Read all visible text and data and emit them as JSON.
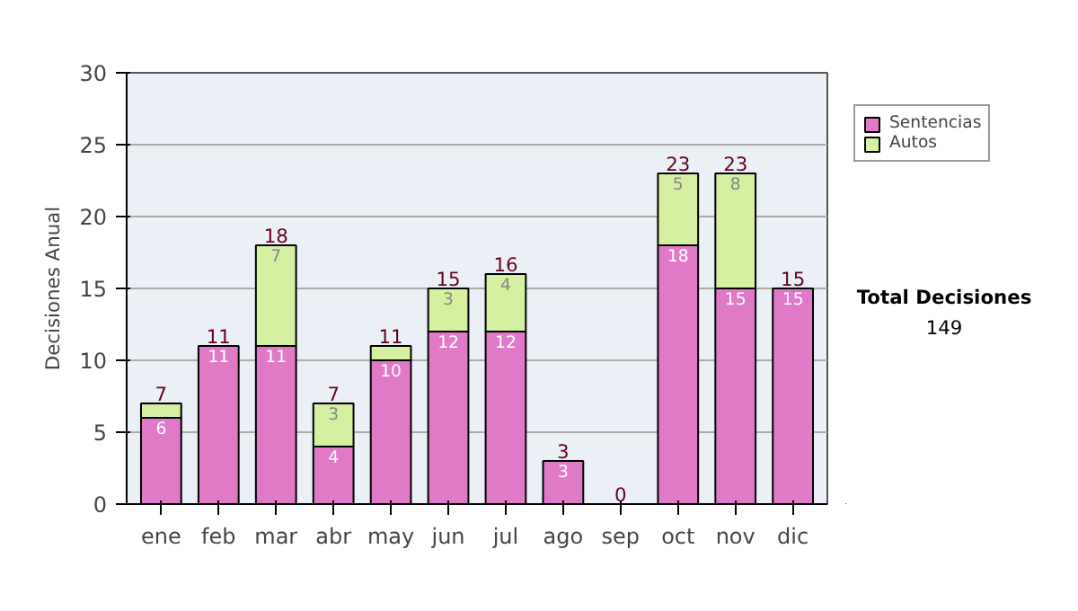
{
  "chart_data": {
    "type": "bar",
    "stacked": true,
    "ylabel": "Decisiones Anual",
    "categories": [
      "ene",
      "feb",
      "mar",
      "abr",
      "may",
      "jun",
      "jul",
      "ago",
      "sep",
      "oct",
      "nov",
      "dic"
    ],
    "series": [
      {
        "name": "Sentencias",
        "color": "#e07ac8",
        "values": [
          6,
          11,
          11,
          4,
          10,
          12,
          12,
          3,
          0,
          18,
          15,
          15
        ],
        "value_labels": [
          "6",
          "11",
          "11",
          "4",
          "10",
          "12",
          "12",
          "3",
          null,
          "18",
          "15",
          "15"
        ]
      },
      {
        "name": "Autos",
        "color": "#d4f0a0",
        "values": [
          1,
          0,
          7,
          3,
          1,
          3,
          4,
          0,
          0,
          5,
          8,
          0
        ],
        "value_labels": [
          null,
          null,
          "7",
          "3",
          null,
          "3",
          "4",
          null,
          null,
          "5",
          "8",
          null
        ]
      }
    ],
    "totals": [
      "7",
      "11",
      "18",
      "7",
      "11",
      "15",
      "16",
      "3",
      "0",
      "23",
      "23",
      "15"
    ],
    "ylim": [
      0,
      30
    ],
    "yticks": [
      0,
      5,
      10,
      15,
      20,
      25,
      30
    ],
    "grid": "y",
    "legend": "right",
    "annotations": [
      "Total Decisiones",
      "149"
    ]
  }
}
